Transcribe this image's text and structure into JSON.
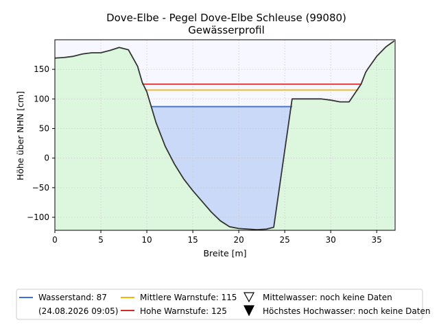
{
  "chart_data": {
    "type": "area",
    "title": "Dove-Elbe - Pegel Dove-Elbe Schleuse (99080)",
    "subtitle": "Gewässerprofil",
    "xlabel": "Breite [m]",
    "ylabel": "Höhe über NHN [cm]",
    "xlim": [
      0,
      37
    ],
    "ylim": [
      -122,
      200
    ],
    "xticks": [
      0,
      5,
      10,
      15,
      20,
      25,
      30,
      35
    ],
    "yticks": [
      -100,
      -50,
      0,
      50,
      100,
      150
    ],
    "grid": true,
    "legend_position": "bottom",
    "colors": {
      "ground_fill": "#dcf7de",
      "sky_fill": "#f7f7ff",
      "water_fill": "#c9d9f7",
      "profile_line": "#333333",
      "wasserstand": "#3a6fdc",
      "mittlere": "#f2b600",
      "hohe": "#d22a2a"
    },
    "profile": {
      "x": [
        0,
        1,
        2,
        3,
        4,
        5,
        6,
        7,
        8,
        9,
        9.5,
        10,
        11,
        12,
        13,
        14,
        15,
        16,
        17,
        18,
        19,
        20,
        21,
        22,
        23,
        23.8,
        25.8,
        26,
        28,
        29,
        30,
        31,
        32,
        33.3,
        33.8,
        34,
        35,
        36,
        36.9
      ],
      "y": [
        169,
        170,
        172,
        176,
        178,
        178,
        182,
        187,
        183,
        155,
        128,
        112,
        60,
        20,
        -10,
        -35,
        -55,
        -73,
        -91,
        -106,
        -116,
        -119,
        -120,
        -121,
        -120,
        -117,
        100,
        100,
        100,
        100,
        98,
        95,
        95,
        125,
        145,
        150,
        172,
        188,
        198
      ]
    },
    "levels": [
      {
        "key": "wasserstand",
        "value": 87,
        "x_from": 10.5,
        "x_to": 25.8
      },
      {
        "key": "mittlere",
        "value": 115,
        "x_from": 9.8,
        "x_to": 33.0
      },
      {
        "key": "hohe",
        "value": 125,
        "x_from": 9.5,
        "x_to": 33.3
      }
    ],
    "legend": {
      "wasserstand": "Wasserstand: 87",
      "wasserstand_date": "(24.08.2026 09:05)",
      "mittlere": "Mittlere Warnstufe: 115",
      "hohe": "Hohe Warnstufe: 125",
      "mittelwasser": "Mittelwasser: noch keine Daten",
      "hochwasser": "Höchstes Hochwasser: noch keine Daten"
    }
  }
}
